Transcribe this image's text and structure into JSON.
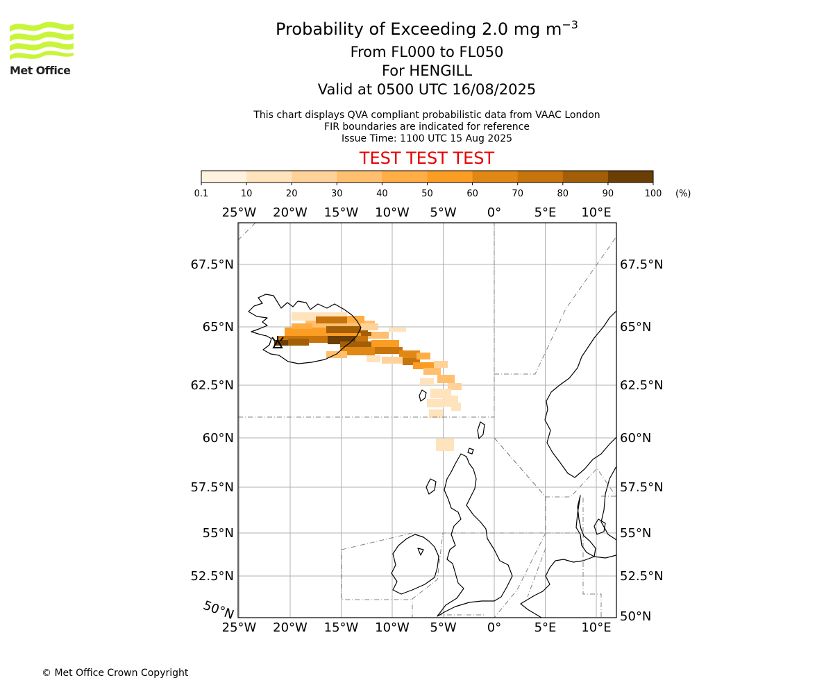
{
  "logo": {
    "text": "Met Office",
    "color": "#c8f53a"
  },
  "header": {
    "title_main": "Probability of Exceeding 2.0 mg m",
    "title_exponent": "−3",
    "levels": "From FL000 to FL050",
    "location": "For HENGILL",
    "valid": "Valid at 0500 UTC 16/08/2025"
  },
  "subtitle": {
    "line1": "This chart displays QVA compliant probabilistic data from VAAC London",
    "line2": "FIR boundaries are indicated for reference",
    "line3": "Issue Time: 1100 UTC 15 Aug 2025"
  },
  "test_banner": {
    "text": "TEST TEST TEST",
    "color": "#e60000"
  },
  "colorbar": {
    "unit": "(%)",
    "ticks": [
      "0.1",
      "10",
      "20",
      "30",
      "40",
      "50",
      "60",
      "70",
      "80",
      "90",
      "100"
    ],
    "colors": [
      "#fff3e0",
      "#ffe3bd",
      "#ffd29a",
      "#ffbf6e",
      "#ffad45",
      "#fb9d23",
      "#e08813",
      "#c7740d",
      "#a35e08",
      "#6b3e04"
    ]
  },
  "map": {
    "lon_labels": [
      "25°W",
      "20°W",
      "15°W",
      "10°W",
      "5°W",
      "0°",
      "5°E",
      "10°E"
    ],
    "lon_values": [
      -25,
      -20,
      -15,
      -10,
      -5,
      0,
      5,
      10
    ],
    "lat_labels_left": [
      "67.5°N",
      "65°N",
      "62.5°N",
      "60°N",
      "57.5°N",
      "55°N",
      "52.5°N",
      "50°N"
    ],
    "lat_labels_right": [
      "67.5°N",
      "65°N",
      "62.5°N",
      "60°N",
      "57.5°N",
      "55°N",
      "52.5°N",
      "50°N"
    ],
    "lat_values": [
      67.5,
      65,
      62.5,
      60,
      57.5,
      55,
      52.5,
      50
    ],
    "volcano": "HENGILL"
  },
  "footer": {
    "copyright": "© Met Office Crown Copyright"
  }
}
